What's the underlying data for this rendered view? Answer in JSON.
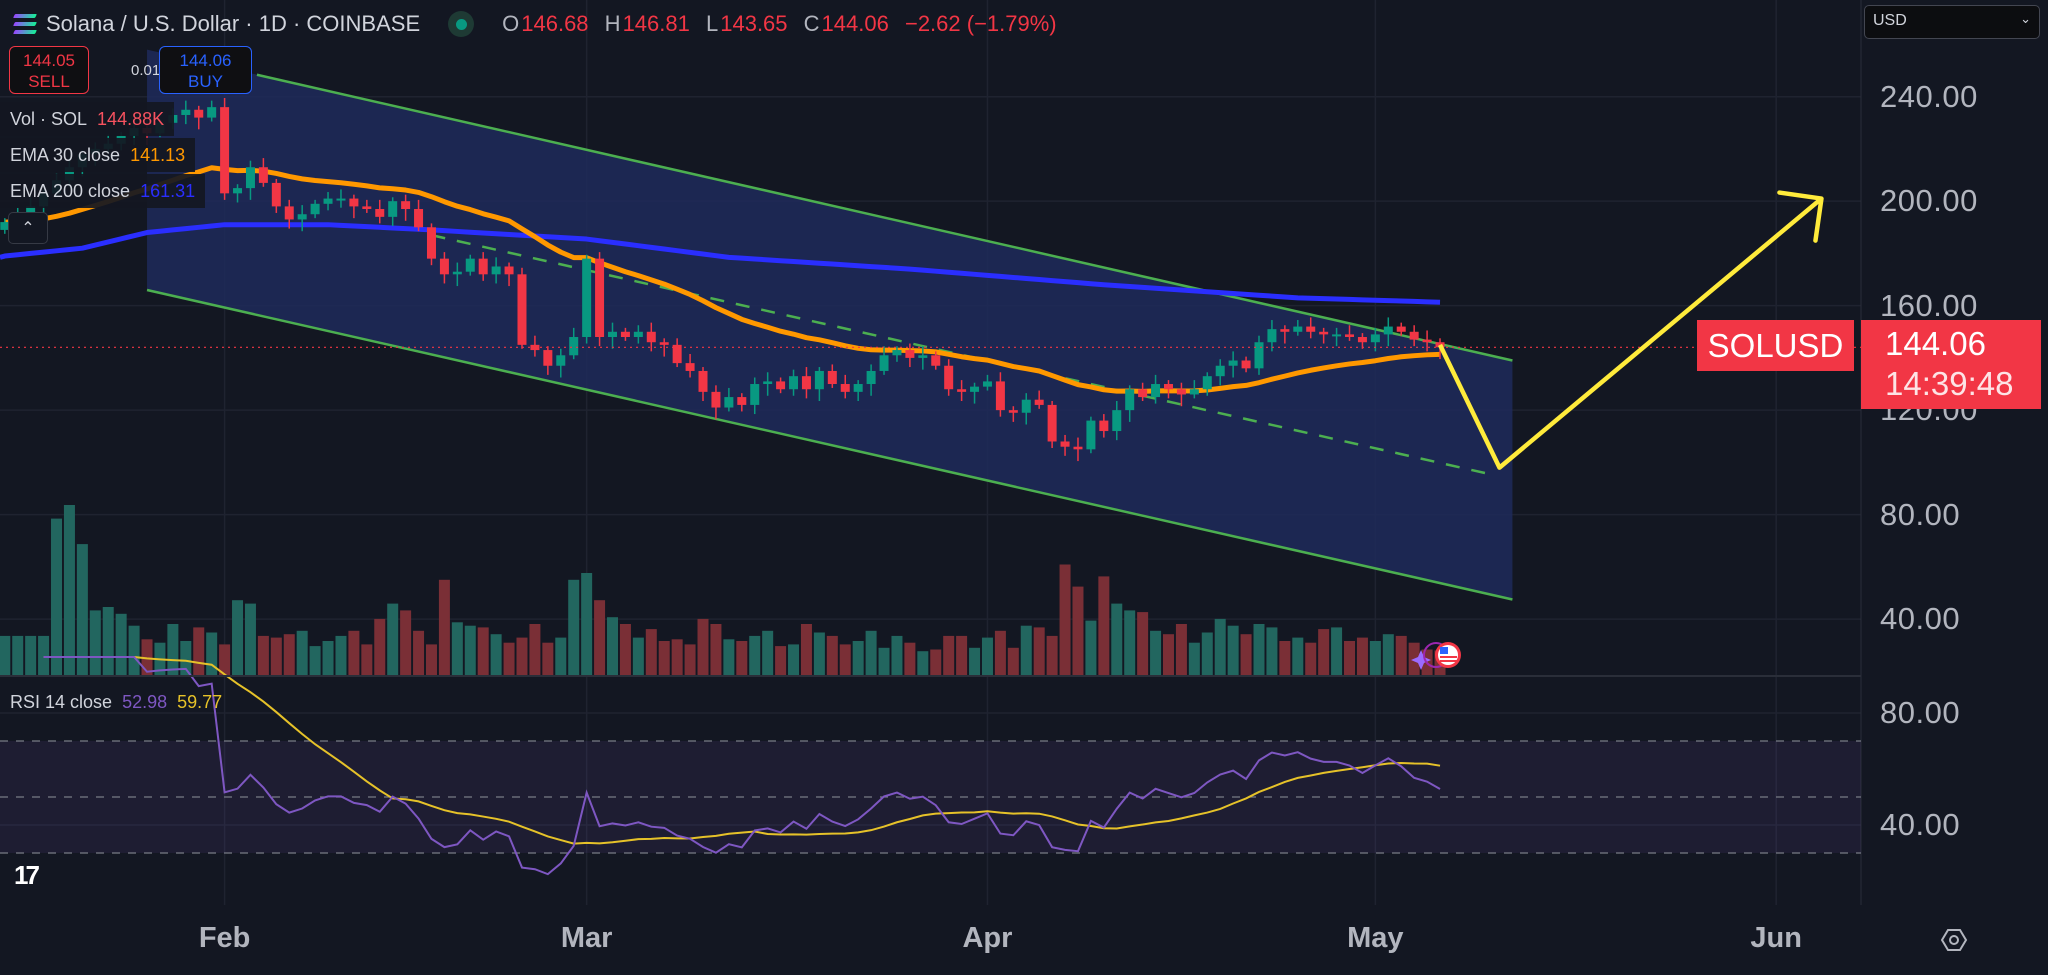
{
  "header": {
    "symbol_title": "Solana / U.S. Dollar · 1D · COINBASE",
    "ohlc": {
      "o_label": "O",
      "o": "146.68",
      "h_label": "H",
      "h": "146.81",
      "l_label": "L",
      "l": "143.65",
      "c_label": "C",
      "c": "144.06",
      "change": "−2.62 (−1.79%)"
    },
    "market_status_icon": "green-dot-icon"
  },
  "trade": {
    "sell_price": "144.05",
    "sell_label": "SELL",
    "spread": "0.01",
    "buy_price": "144.06",
    "buy_label": "BUY"
  },
  "legend": {
    "vol_name": "Vol · SOL",
    "vol_value": "144.88K",
    "ema30_name": "EMA 30 close",
    "ema30_value": "141.13",
    "ema200_name": "EMA 200 close",
    "ema200_value": "161.31",
    "collapse_icon": "chevron-up-icon"
  },
  "rsi_legend": {
    "name": "RSI 14 close",
    "rsi_value": "52.98",
    "ma_value": "59.77"
  },
  "currency_select": {
    "value": "USD"
  },
  "price_tag": {
    "symbol": "SOLUSD",
    "price": "144.06",
    "countdown": "14:39:48"
  },
  "price_axis": {
    "ticks": [
      "240.00",
      "200.00",
      "160.00",
      "120.00",
      "80.00",
      "40.00"
    ]
  },
  "rsi_axis": {
    "ticks": [
      "80.00",
      "40.00"
    ]
  },
  "time_axis": {
    "ticks": [
      {
        "label": "Feb",
        "bar": 17
      },
      {
        "label": "Mar",
        "bar": 45
      },
      {
        "label": "Apr",
        "bar": 76
      },
      {
        "label": "May",
        "bar": 106
      },
      {
        "label": "Jun",
        "bar": 137
      }
    ]
  },
  "colors": {
    "background": "#131722",
    "up": "#089981",
    "down": "#f23645",
    "ema30": "#ff9800",
    "ema200": "#2a2eff",
    "rsi": "#7e57c2",
    "rsi_ma": "#e6c229",
    "channel": "#4caf50",
    "channel_fill": "#1e2a5a",
    "arrow": "#ffeb3b",
    "last_price": "#f23645"
  },
  "chart_data": {
    "type": "candlestick",
    "title": "Solana / U.S. Dollar · 1D · COINBASE",
    "ylim": [
      20,
      260
    ],
    "grid": true,
    "close": [
      192,
      195,
      198,
      203,
      208,
      213,
      218,
      220,
      222,
      225,
      228,
      226,
      230,
      233,
      235,
      232,
      236,
      203,
      205,
      213,
      207,
      198,
      193,
      195,
      199,
      201,
      201,
      198,
      197,
      194,
      200,
      197,
      190,
      178,
      172,
      173,
      178,
      172,
      175,
      172,
      145,
      143,
      137,
      141,
      148,
      178,
      148,
      150,
      148,
      150,
      146,
      145,
      138,
      135,
      127,
      121,
      125,
      122,
      130,
      131,
      128,
      133,
      128,
      135,
      130,
      127,
      130,
      135,
      141,
      143,
      140,
      141,
      137,
      128,
      127,
      129,
      131,
      120,
      119,
      124,
      122,
      108,
      106,
      105,
      116,
      112,
      120,
      128,
      125,
      130,
      128,
      126,
      128,
      133,
      137,
      139,
      136,
      146,
      151,
      150,
      152,
      150,
      149,
      149,
      148,
      146,
      149,
      152,
      150,
      147,
      146,
      144.06
    ],
    "volume_k": [
      230,
      230,
      230,
      230,
      920,
      1000,
      770,
      380,
      400,
      360,
      290,
      210,
      190,
      300,
      200,
      280,
      250,
      180,
      440,
      420,
      230,
      220,
      240,
      260,
      170,
      200,
      230,
      260,
      180,
      330,
      420,
      380,
      260,
      180,
      560,
      310,
      290,
      280,
      240,
      190,
      220,
      300,
      190,
      220,
      560,
      600,
      440,
      340,
      300,
      220,
      270,
      200,
      210,
      180,
      330,
      300,
      210,
      200,
      230,
      260,
      170,
      180,
      300,
      250,
      230,
      180,
      200,
      260,
      160,
      230,
      190,
      140,
      150,
      230,
      230,
      160,
      220,
      260,
      160,
      290,
      280,
      230,
      650,
      520,
      320,
      580,
      420,
      380,
      370,
      260,
      240,
      300,
      190,
      250,
      330,
      290,
      240,
      300,
      280,
      200,
      220,
      190,
      270,
      280,
      200,
      220,
      200,
      240,
      230,
      190,
      150,
      144.88
    ],
    "ema200": [
      [
        0,
        179
      ],
      [
        6,
        182
      ],
      [
        11,
        188
      ],
      [
        17,
        191
      ],
      [
        25,
        191
      ],
      [
        33,
        189
      ],
      [
        45,
        185.5
      ],
      [
        56,
        178.5
      ],
      [
        70,
        174
      ],
      [
        85,
        168
      ],
      [
        100,
        163
      ],
      [
        111,
        161.31
      ]
    ],
    "rsi_bands": [
      70,
      50,
      30
    ],
    "drawings": {
      "channel_upper": [
        [
          11,
          258
        ],
        [
          116.6,
          139
        ]
      ],
      "channel_lower": [
        [
          11,
          166
        ],
        [
          116.6,
          47.5
        ]
      ],
      "channel_mid": [
        [
          33,
          187
        ],
        [
          115.3,
          95
        ]
      ],
      "forecast_arrow": [
        [
          111,
          145
        ],
        [
          115.6,
          98
        ],
        [
          140.5,
          201
        ]
      ]
    }
  }
}
